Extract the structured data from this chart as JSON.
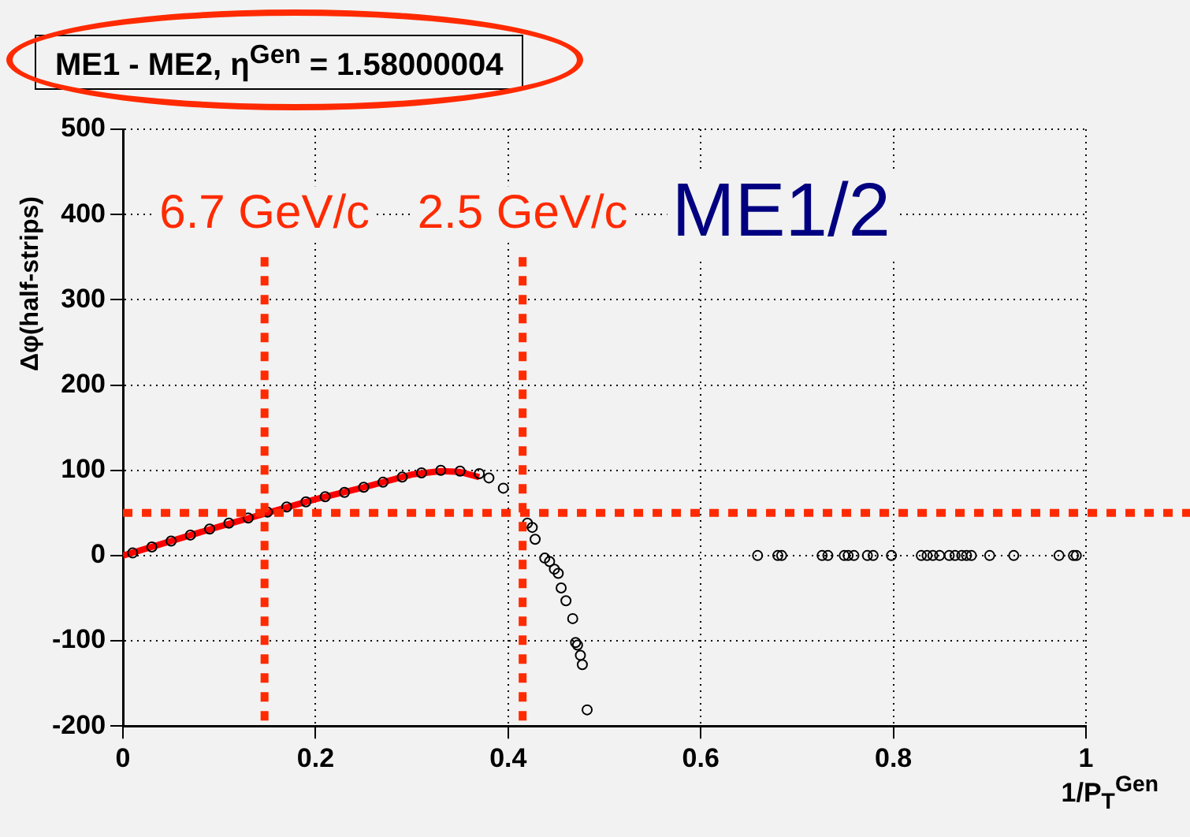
{
  "chart_data": {
    "type": "scatter",
    "title": "ME1 - ME2, η$^{Gen}$ = 1.58000004",
    "xlabel": "1/P$_{T}$$^{Gen}$",
    "ylabel": "Δφ(half-strips)",
    "annotations": [
      "ME1/2"
    ],
    "xlim": [
      0,
      1
    ],
    "xticks": [
      0,
      0.2,
      0.4,
      0.6,
      0.8,
      1
    ],
    "ylim": [
      -200,
      500
    ],
    "yticks": [
      -200,
      -100,
      0,
      100,
      200,
      300,
      400,
      500
    ],
    "grid": true,
    "legend": false,
    "marker": "circle",
    "ref_lines": [
      {
        "axis": "x",
        "value": 0.147,
        "label": "6.7 GeV/c",
        "color": "#ff2a00",
        "line_style": "dotted"
      },
      {
        "axis": "x",
        "value": 0.415,
        "label": "2.5 GeV/c",
        "color": "#ff2a00",
        "line_style": "dotted"
      },
      {
        "axis": "y",
        "value": 50,
        "color": "#ff2a00",
        "line_style": "dotted"
      }
    ],
    "series": [
      {
        "color": "#000000",
        "x": [
          0.01,
          0.03,
          0.05,
          0.07,
          0.09,
          0.11,
          0.13,
          0.15,
          0.17,
          0.19,
          0.21,
          0.23,
          0.25,
          0.27,
          0.29,
          0.31,
          0.33,
          0.35,
          0.37,
          0.38,
          0.395,
          0.42,
          0.425,
          0.428,
          0.438,
          0.443,
          0.448,
          0.452,
          0.455,
          0.46,
          0.467,
          0.47,
          0.472,
          0.475,
          0.477,
          0.482,
          0.659,
          0.68,
          0.684,
          0.726,
          0.732,
          0.749,
          0.753,
          0.759,
          0.773,
          0.779,
          0.798,
          0.829,
          0.835,
          0.841,
          0.848,
          0.858,
          0.864,
          0.871,
          0.876,
          0.881,
          0.9,
          0.925,
          0.972,
          0.987,
          0.99
        ],
        "values": [
          3,
          10,
          17,
          24,
          31,
          38,
          44,
          51,
          57,
          63,
          69,
          74,
          80,
          86,
          92,
          97,
          100,
          99,
          96,
          91,
          79,
          38,
          33,
          19,
          -3,
          -7,
          -16,
          -21,
          -38,
          -53,
          -74,
          -102,
          -105,
          -117,
          -128,
          -181,
          0,
          0,
          0,
          0,
          0,
          0,
          0,
          0,
          0,
          0,
          0,
          0,
          0,
          0,
          0,
          0,
          0,
          0,
          0,
          0,
          0,
          0,
          0,
          0,
          0
        ]
      },
      {
        "type": "line",
        "color": "#ff0000",
        "marker": "none",
        "x": [
          0,
          0.1,
          0.2,
          0.25,
          0.3,
          0.33,
          0.35,
          0.37
        ],
        "values": [
          0,
          34,
          66,
          80,
          95,
          99,
          98,
          92
        ]
      }
    ]
  }
}
